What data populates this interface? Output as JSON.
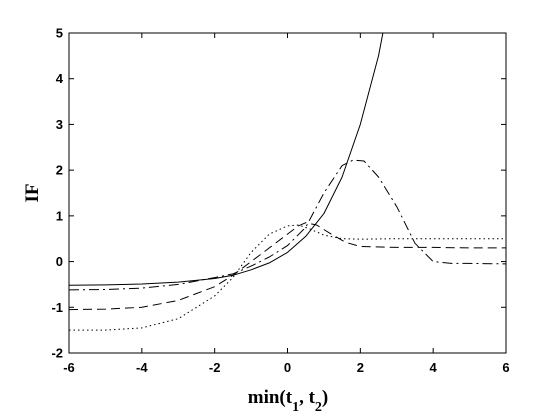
{
  "chart_data": {
    "type": "line",
    "xlabel": "min(t",
    "xlabel_sub1": "1",
    "xlabel_mid": ", t",
    "xlabel_sub2": "2",
    "xlabel_end": ")",
    "ylabel": "IF",
    "xlim": [
      -6,
      6
    ],
    "ylim": [
      -2,
      5
    ],
    "x_ticks": [
      -6,
      -4,
      -2,
      0,
      2,
      4,
      6
    ],
    "y_ticks": [
      -2,
      -1,
      0,
      1,
      2,
      3,
      4,
      5
    ],
    "grid": false,
    "series": [
      {
        "style": "solid",
        "color": "#000000",
        "points": [
          [
            -6,
            -0.52
          ],
          [
            -5,
            -0.51
          ],
          [
            -4,
            -0.49
          ],
          [
            -3,
            -0.45
          ],
          [
            -2,
            -0.37
          ],
          [
            -1.5,
            -0.3
          ],
          [
            -1,
            -0.18
          ],
          [
            -0.5,
            -0.03
          ],
          [
            0,
            0.2
          ],
          [
            0.5,
            0.55
          ],
          [
            1,
            1.05
          ],
          [
            1.5,
            1.85
          ],
          [
            2,
            3.0
          ],
          [
            2.5,
            4.5
          ],
          [
            2.62,
            5.0
          ]
        ]
      },
      {
        "style": "dashed",
        "color": "#000000",
        "points": [
          [
            -6,
            -1.05
          ],
          [
            -5,
            -1.04
          ],
          [
            -4,
            -1.0
          ],
          [
            -3,
            -0.85
          ],
          [
            -2,
            -0.55
          ],
          [
            -1.5,
            -0.3
          ],
          [
            -1,
            0.0
          ],
          [
            -0.5,
            0.3
          ],
          [
            0,
            0.6
          ],
          [
            0.3,
            0.78
          ],
          [
            0.5,
            0.85
          ],
          [
            0.8,
            0.8
          ],
          [
            1.2,
            0.6
          ],
          [
            1.6,
            0.42
          ],
          [
            2,
            0.33
          ],
          [
            3,
            0.31
          ],
          [
            4,
            0.31
          ],
          [
            5,
            0.3
          ],
          [
            6,
            0.3
          ]
        ]
      },
      {
        "style": "dotted",
        "color": "#000000",
        "points": [
          [
            -6,
            -1.5
          ],
          [
            -5,
            -1.5
          ],
          [
            -4,
            -1.45
          ],
          [
            -3,
            -1.25
          ],
          [
            -2,
            -0.75
          ],
          [
            -1.5,
            -0.35
          ],
          [
            -1,
            0.2
          ],
          [
            -0.5,
            0.6
          ],
          [
            0,
            0.78
          ],
          [
            0.3,
            0.8
          ],
          [
            0.6,
            0.72
          ],
          [
            1,
            0.58
          ],
          [
            1.5,
            0.5
          ],
          [
            2,
            0.49
          ],
          [
            3,
            0.5
          ],
          [
            4,
            0.5
          ],
          [
            5,
            0.5
          ],
          [
            6,
            0.5
          ]
        ]
      },
      {
        "style": "dashdot",
        "color": "#000000",
        "points": [
          [
            -6,
            -0.62
          ],
          [
            -5,
            -0.61
          ],
          [
            -4,
            -0.58
          ],
          [
            -3,
            -0.5
          ],
          [
            -2,
            -0.35
          ],
          [
            -1.5,
            -0.27
          ],
          [
            -1,
            -0.1
          ],
          [
            -0.5,
            0.1
          ],
          [
            0,
            0.35
          ],
          [
            0.5,
            0.75
          ],
          [
            1,
            1.5
          ],
          [
            1.5,
            2.1
          ],
          [
            1.8,
            2.22
          ],
          [
            2.1,
            2.2
          ],
          [
            2.5,
            1.85
          ],
          [
            3,
            1.2
          ],
          [
            3.5,
            0.4
          ],
          [
            4,
            0.0
          ],
          [
            4.5,
            -0.04
          ],
          [
            5,
            -0.04
          ],
          [
            6,
            -0.05
          ]
        ]
      }
    ]
  }
}
